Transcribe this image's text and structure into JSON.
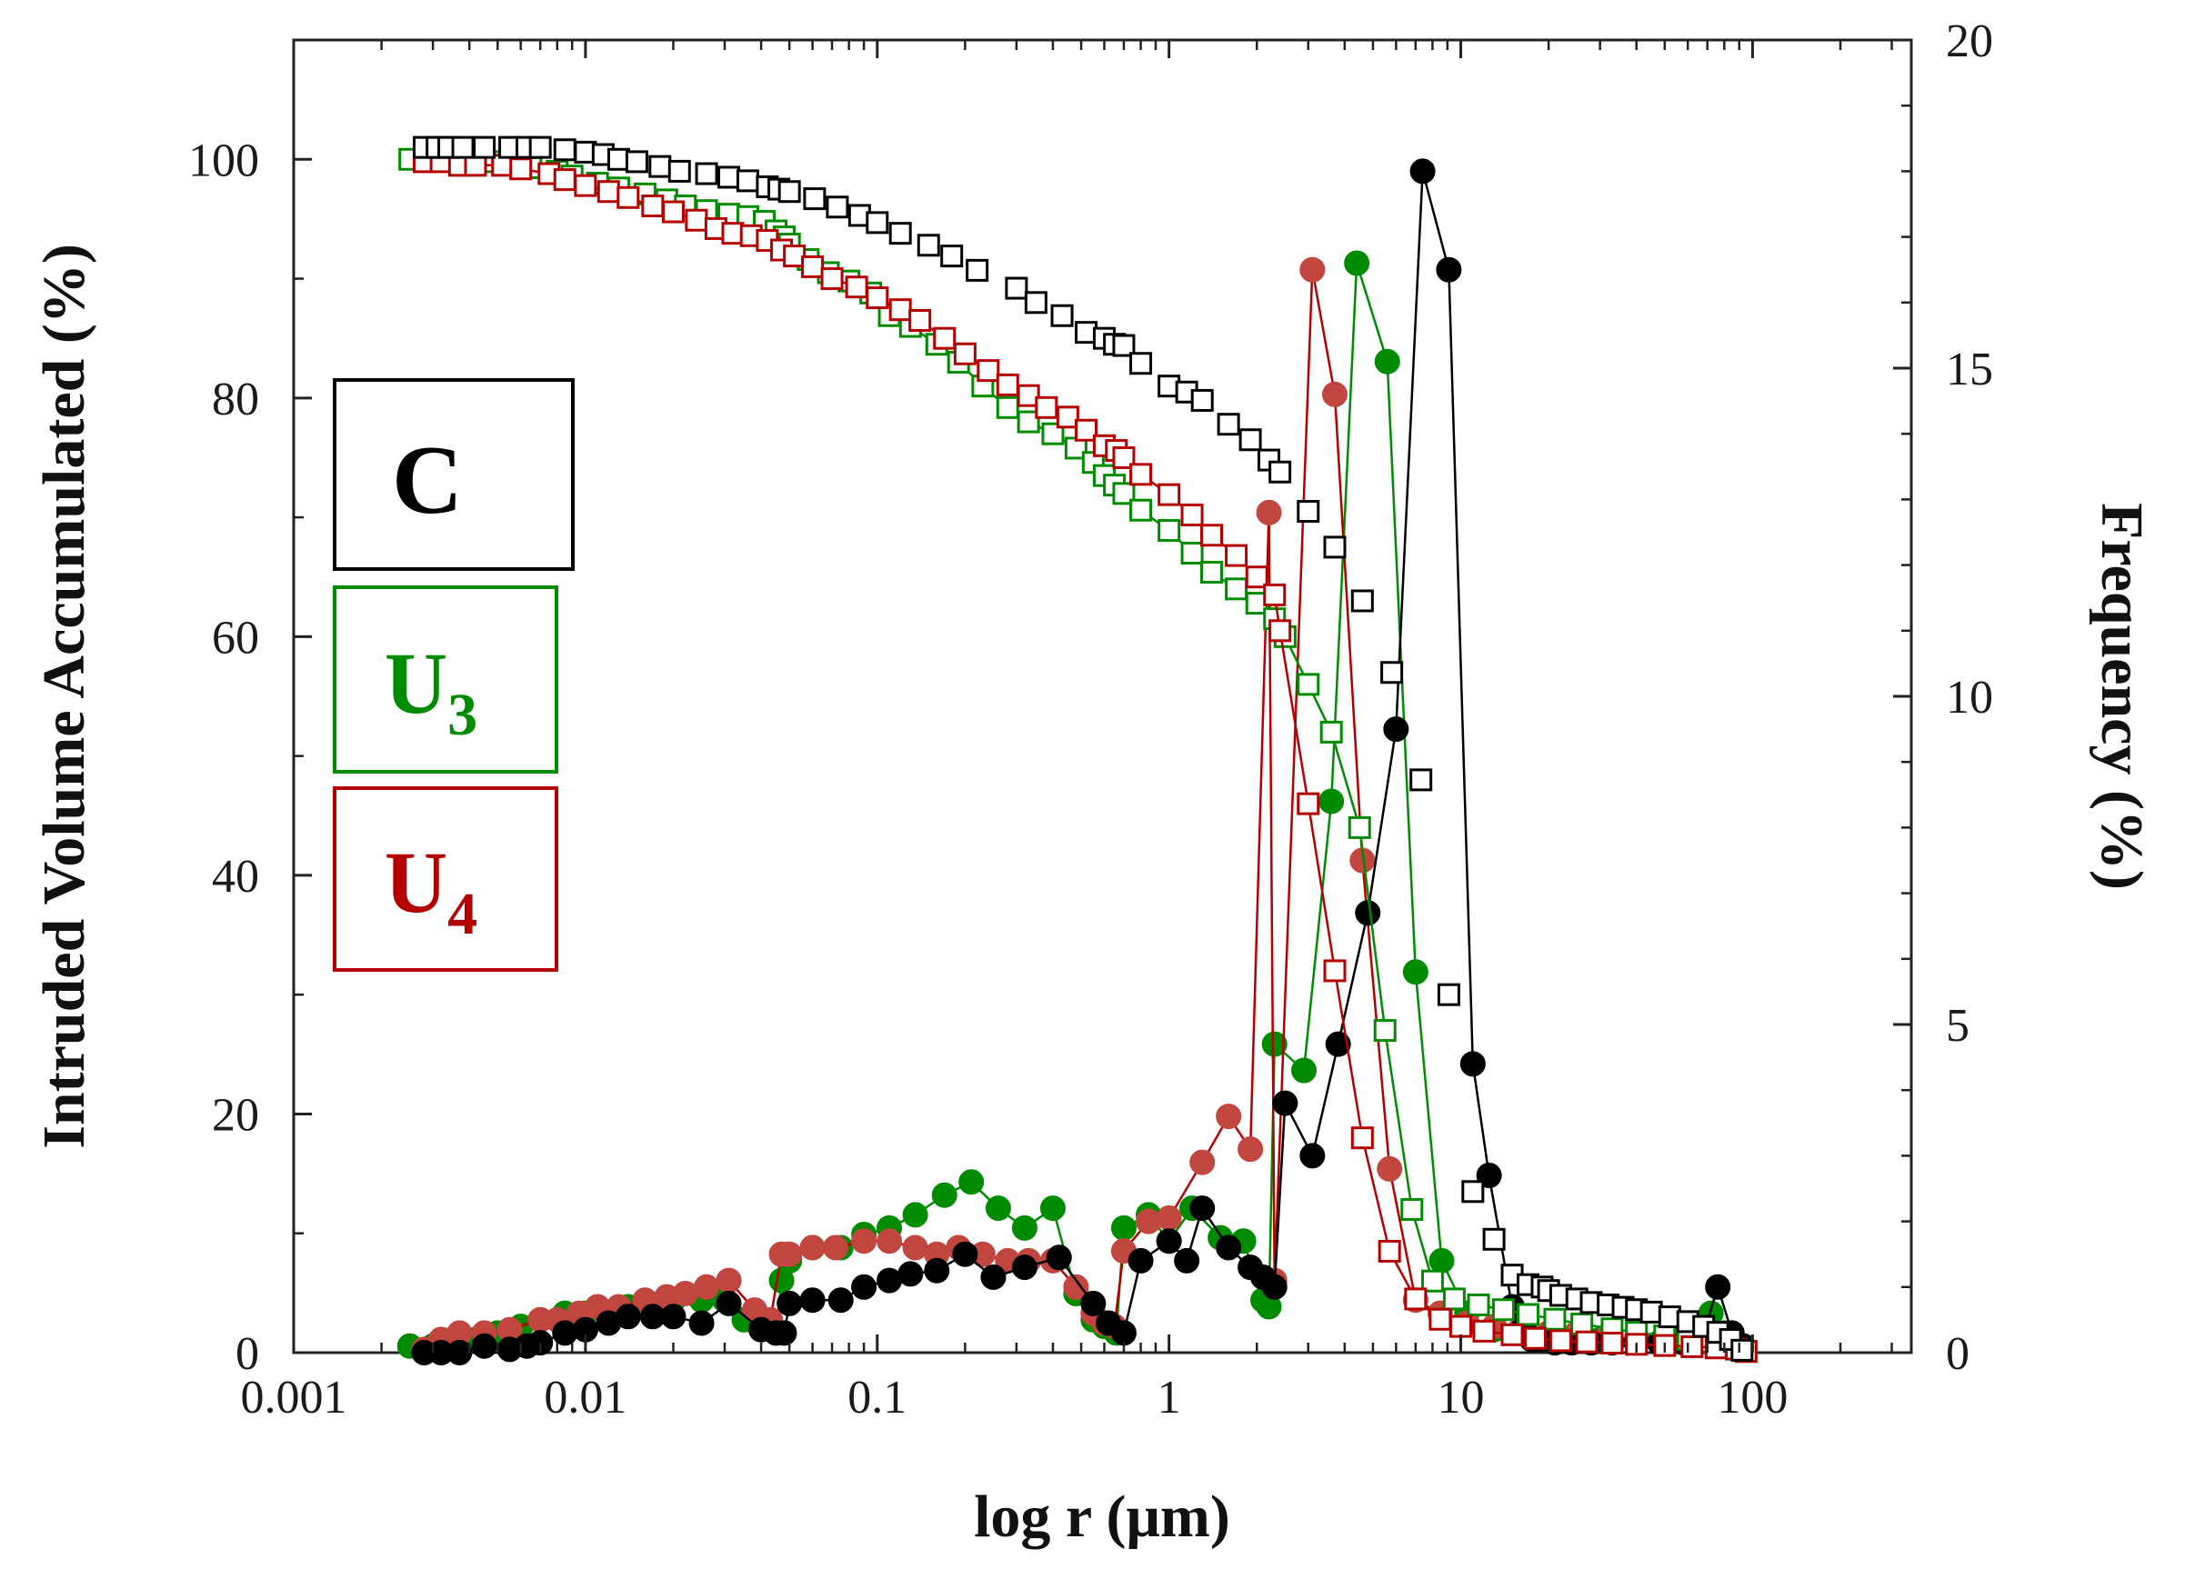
{
  "chart_data": {
    "type": "scatter",
    "x_scale": "log",
    "xlabel": "log r (μm)",
    "ylabel_left": "Intruded Volume Accumulated (%)",
    "ylabel_right": "Frequency (%)",
    "xlim": [
      0.001,
      350
    ],
    "ylim_left": [
      0,
      110
    ],
    "ylim_right": [
      0,
      20
    ],
    "x_ticks": [
      0.001,
      0.01,
      0.1,
      1,
      10,
      100
    ],
    "x_tick_labels": [
      "0.001",
      "0.01",
      "0.1",
      "1",
      "10",
      "100"
    ],
    "y_left_ticks": [
      0,
      20,
      40,
      60,
      80,
      100
    ],
    "y_left_tick_labels": [
      "0",
      "20",
      "40",
      "60",
      "80",
      "100"
    ],
    "y_right_ticks": [
      0,
      5,
      10,
      15,
      20
    ],
    "y_right_tick_labels": [
      "0",
      "5",
      "10",
      "15",
      "20"
    ],
    "legend": [
      {
        "label": "C",
        "subscript": "",
        "color": "#000000"
      },
      {
        "label": "U",
        "subscript": "3",
        "color": "#008c00"
      },
      {
        "label": "U",
        "subscript": "4",
        "color": "#b40000"
      }
    ],
    "series": [
      {
        "name": "C cumulative",
        "axis": "left",
        "marker": "square-open",
        "color": "#000000",
        "line": false,
        "x": [
          0.0028,
          0.0031,
          0.0034,
          0.0038,
          0.0045,
          0.0055,
          0.0063,
          0.007,
          0.0085,
          0.01,
          0.0115,
          0.013,
          0.015,
          0.018,
          0.021,
          0.026,
          0.031,
          0.036,
          0.042,
          0.046,
          0.05,
          0.061,
          0.073,
          0.087,
          0.1,
          0.12,
          0.15,
          0.18,
          0.22,
          0.3,
          0.35,
          0.43,
          0.52,
          0.6,
          0.65,
          0.7,
          0.8,
          1.0,
          1.15,
          1.3,
          1.6,
          1.9,
          2.2,
          2.4,
          3.0,
          3.7,
          4.6,
          5.8,
          7.3,
          9.1,
          11.0,
          13.0,
          15.0,
          17.0,
          19.0,
          20.0,
          22.0,
          25.0,
          28.0,
          32.0,
          36.0,
          40.0,
          45.0,
          52.0,
          60.0,
          68.0,
          76.0,
          84.0,
          92.0
        ],
        "values": [
          101,
          101,
          101,
          101,
          101,
          101,
          101,
          101,
          100.8,
          100.6,
          100.4,
          100.0,
          99.8,
          99.4,
          99.0,
          98.8,
          98.5,
          98.2,
          97.7,
          97.5,
          97.3,
          96.7,
          96.0,
          95.3,
          94.7,
          93.8,
          92.8,
          91.9,
          90.7,
          89.2,
          88.0,
          86.9,
          85.5,
          85.0,
          84.5,
          84.4,
          82.9,
          81.0,
          80.5,
          79.8,
          77.8,
          76.5,
          74.8,
          73.8,
          70.5,
          67.5,
          63.0,
          57.0,
          48.0,
          30.0,
          13.5,
          9.5,
          6.5,
          5.7,
          5.5,
          5.2,
          4.8,
          4.5,
          4.2,
          4.0,
          3.8,
          3.6,
          3.4,
          3.0,
          2.6,
          2.2,
          1.7,
          1.1,
          0.2
        ]
      },
      {
        "name": "U3 cumulative",
        "axis": "left",
        "marker": "square-open",
        "color": "#008c00",
        "line": true,
        "x": [
          0.0025,
          0.003,
          0.0035,
          0.004,
          0.0048,
          0.0055,
          0.0065,
          0.008,
          0.009,
          0.011,
          0.013,
          0.016,
          0.019,
          0.022,
          0.026,
          0.031,
          0.036,
          0.041,
          0.045,
          0.048,
          0.05,
          0.058,
          0.068,
          0.08,
          0.095,
          0.11,
          0.13,
          0.16,
          0.19,
          0.23,
          0.28,
          0.33,
          0.4,
          0.48,
          0.55,
          0.6,
          0.65,
          0.7,
          0.8,
          1.0,
          1.2,
          1.4,
          1.7,
          2.0,
          2.3,
          2.5,
          3.0,
          3.6,
          4.5,
          5.5,
          6.8,
          8.0,
          9.5,
          11.5,
          14.0,
          17.0,
          21.0,
          26.0,
          33.0,
          40.0,
          50.0,
          60.0,
          72.0,
          80.0,
          88.0,
          95.0
        ],
        "values": [
          100,
          100,
          100,
          99.8,
          99.8,
          99.6,
          99.3,
          99.0,
          98.6,
          98.0,
          97.6,
          97.1,
          96.6,
          96.1,
          95.7,
          95.4,
          95.2,
          94.8,
          94.0,
          93.5,
          92.9,
          91.6,
          90.5,
          89.8,
          88.8,
          86.9,
          86.0,
          84.5,
          83.0,
          81.0,
          79.2,
          78.0,
          77.0,
          75.8,
          74.6,
          73.5,
          72.7,
          72.0,
          70.6,
          68.9,
          67.0,
          65.4,
          64.0,
          62.8,
          61.5,
          60.0,
          56.0,
          52.0,
          44.0,
          27.0,
          12.0,
          6.0,
          4.5,
          4.0,
          3.6,
          3.2,
          2.8,
          2.4,
          2.0,
          1.7,
          1.4,
          1.1,
          0.9,
          0.6,
          0.3,
          0.1
        ]
      },
      {
        "name": "U4 cumulative",
        "axis": "left",
        "marker": "square-open",
        "color": "#b40000",
        "line": true,
        "x": [
          0.0028,
          0.0032,
          0.0037,
          0.0042,
          0.0052,
          0.006,
          0.0075,
          0.0085,
          0.01,
          0.012,
          0.014,
          0.017,
          0.02,
          0.024,
          0.028,
          0.032,
          0.037,
          0.042,
          0.047,
          0.052,
          0.06,
          0.07,
          0.085,
          0.1,
          0.12,
          0.14,
          0.17,
          0.2,
          0.24,
          0.28,
          0.33,
          0.38,
          0.45,
          0.52,
          0.6,
          0.66,
          0.7,
          0.8,
          1.0,
          1.2,
          1.4,
          1.7,
          2.0,
          2.3,
          2.4,
          3.0,
          3.7,
          4.6,
          5.7,
          7.0,
          8.5,
          10.0,
          12.0,
          15.0,
          18.0,
          22.0,
          27.0,
          33.0,
          40.0,
          50.0,
          62.0,
          75.0,
          88.0,
          95.0
        ],
        "values": [
          99.8,
          99.8,
          99.5,
          99.5,
          99.5,
          99.2,
          98.8,
          98.3,
          97.8,
          97.3,
          96.8,
          96.1,
          95.6,
          94.9,
          94.2,
          93.8,
          93.6,
          93.2,
          92.4,
          91.9,
          91.0,
          90.0,
          89.3,
          88.4,
          87.4,
          86.5,
          85.0,
          83.7,
          82.3,
          81.1,
          80.2,
          79.2,
          78.4,
          77.3,
          76.0,
          75.6,
          75.0,
          73.6,
          71.9,
          70.2,
          68.5,
          66.8,
          65.0,
          63.5,
          60.5,
          46.0,
          32.0,
          18.0,
          8.5,
          4.5,
          2.8,
          2.2,
          1.8,
          1.5,
          1.2,
          1.0,
          0.9,
          0.8,
          0.7,
          0.6,
          0.5,
          0.4,
          0.3,
          0.1
        ]
      },
      {
        "name": "C frequency",
        "axis": "right",
        "marker": "circle-filled",
        "color": "#000000",
        "line": true,
        "x": [
          0.0028,
          0.0032,
          0.0037,
          0.0045,
          0.0055,
          0.0063,
          0.007,
          0.0085,
          0.01,
          0.012,
          0.014,
          0.017,
          0.02,
          0.025,
          0.031,
          0.04,
          0.045,
          0.048,
          0.05,
          0.06,
          0.075,
          0.09,
          0.11,
          0.13,
          0.16,
          0.2,
          0.25,
          0.32,
          0.42,
          0.55,
          0.62,
          0.7,
          0.8,
          1.0,
          1.15,
          1.3,
          1.6,
          1.9,
          2.1,
          2.3,
          2.5,
          3.1,
          3.8,
          4.8,
          6.0,
          7.4,
          9.1,
          11.0,
          12.5,
          15.0,
          16.5,
          17.5,
          19.0,
          21.0,
          24.0,
          28.0,
          33.0,
          40.0,
          48.0,
          58.0,
          68.0,
          76.0,
          85.0,
          93.0
        ],
        "values": [
          0.0,
          0.0,
          0.0,
          0.1,
          0.05,
          0.1,
          0.15,
          0.3,
          0.35,
          0.45,
          0.55,
          0.55,
          0.55,
          0.45,
          0.75,
          0.35,
          0.3,
          0.3,
          0.75,
          0.8,
          0.8,
          1.0,
          1.1,
          1.2,
          1.25,
          1.5,
          1.15,
          1.3,
          1.45,
          0.75,
          0.45,
          0.3,
          1.4,
          1.7,
          1.4,
          2.2,
          1.6,
          1.3,
          1.15,
          1.0,
          3.8,
          3.0,
          4.7,
          6.7,
          9.5,
          18.0,
          16.5,
          4.4,
          2.7,
          0.7,
          0.4,
          0.2,
          0.2,
          0.15,
          0.15,
          0.15,
          0.15,
          0.15,
          0.15,
          0.15,
          0.3,
          1.0,
          0.3,
          0.1
        ]
      },
      {
        "name": "U3 frequency",
        "axis": "right",
        "marker": "circle-filled",
        "color": "#008c00",
        "line": true,
        "x": [
          0.0025,
          0.003,
          0.0035,
          0.0042,
          0.005,
          0.006,
          0.007,
          0.0085,
          0.01,
          0.012,
          0.014,
          0.017,
          0.02,
          0.025,
          0.03,
          0.035,
          0.04,
          0.045,
          0.047,
          0.05,
          0.06,
          0.075,
          0.09,
          0.11,
          0.135,
          0.17,
          0.21,
          0.26,
          0.32,
          0.4,
          0.48,
          0.55,
          0.6,
          0.66,
          0.7,
          0.85,
          1.0,
          1.2,
          1.5,
          1.8,
          2.1,
          2.2,
          2.3,
          2.9,
          3.6,
          4.4,
          5.6,
          7.0,
          8.6,
          10.5,
          13.0,
          16.0,
          19.0,
          24.0,
          30.0,
          40.0,
          52.0,
          65.0,
          72.0,
          80.0,
          90.0
        ],
        "values": [
          0.1,
          0.1,
          0.2,
          0.2,
          0.3,
          0.4,
          0.5,
          0.6,
          0.6,
          0.6,
          0.7,
          0.7,
          0.8,
          0.8,
          0.8,
          0.5,
          0.45,
          0.3,
          1.1,
          1.4,
          1.6,
          1.6,
          1.8,
          1.9,
          2.1,
          2.4,
          2.6,
          2.2,
          1.9,
          2.2,
          0.9,
          0.5,
          0.4,
          0.3,
          1.9,
          2.1,
          1.7,
          2.2,
          1.75,
          1.7,
          0.8,
          0.7,
          4.7,
          4.3,
          8.4,
          16.6,
          15.1,
          5.8,
          1.4,
          0.6,
          0.35,
          0.3,
          0.2,
          0.2,
          0.2,
          0.2,
          0.2,
          0.3,
          0.6,
          0.3,
          0.1
        ]
      },
      {
        "name": "U4 frequency",
        "axis": "right",
        "marker": "circle-filled",
        "color": "#b40000",
        "line": true,
        "x": [
          0.0028,
          0.0032,
          0.0037,
          0.0045,
          0.0055,
          0.007,
          0.008,
          0.0095,
          0.011,
          0.013,
          0.016,
          0.019,
          0.022,
          0.026,
          0.031,
          0.038,
          0.043,
          0.047,
          0.05,
          0.06,
          0.072,
          0.09,
          0.11,
          0.135,
          0.16,
          0.19,
          0.23,
          0.28,
          0.33,
          0.4,
          0.48,
          0.55,
          0.6,
          0.65,
          0.7,
          0.85,
          1.0,
          1.3,
          1.6,
          1.9,
          2.2,
          2.3,
          3.1,
          3.7,
          4.6,
          5.7,
          7.0,
          8.5,
          10.5,
          13.0,
          16.0,
          20.0,
          25.0,
          32.0,
          40.0,
          52.0,
          65.0,
          78.0,
          90.0
        ],
        "values": [
          0.05,
          0.2,
          0.3,
          0.3,
          0.35,
          0.5,
          0.5,
          0.6,
          0.7,
          0.7,
          0.8,
          0.85,
          0.9,
          1.0,
          1.1,
          0.65,
          0.5,
          1.5,
          1.5,
          1.6,
          1.6,
          1.7,
          1.7,
          1.6,
          1.5,
          1.6,
          1.5,
          1.4,
          1.4,
          1.4,
          1.0,
          0.6,
          0.45,
          0.4,
          1.55,
          2.0,
          2.05,
          2.9,
          3.6,
          3.1,
          12.8,
          1.1,
          16.5,
          14.6,
          7.5,
          2.8,
          0.8,
          0.6,
          0.45,
          0.4,
          0.35,
          0.3,
          0.3,
          0.25,
          0.2,
          0.2,
          0.2,
          0.15,
          0.1
        ]
      }
    ]
  }
}
